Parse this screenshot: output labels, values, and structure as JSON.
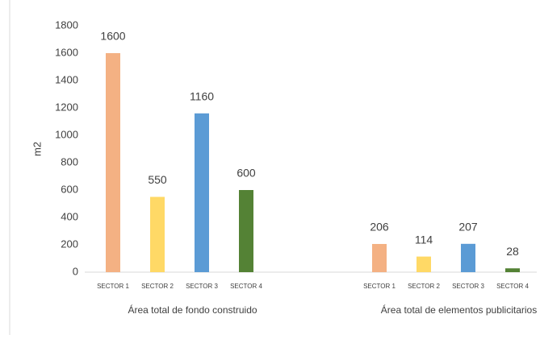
{
  "chart_data": {
    "type": "bar",
    "y_label": "m2",
    "categories": [
      "Área  total de fondo construido",
      "Área total de elementos publicitarios"
    ],
    "series": [
      {
        "name": "SECTOR 1",
        "color": "#f4b183",
        "values": [
          1600,
          206
        ]
      },
      {
        "name": "SECTOR 2",
        "color": "#ffd966",
        "values": [
          550,
          114
        ]
      },
      {
        "name": "SECTOR 3",
        "color": "#5b9bd5",
        "values": [
          1160,
          207
        ]
      },
      {
        "name": "SECTOR 4",
        "color": "#548235",
        "values": [
          600,
          28
        ]
      }
    ],
    "ylim": [
      0,
      1800
    ],
    "yticks": [
      0,
      200,
      400,
      600,
      800,
      1000,
      1200,
      1400,
      1600,
      1800
    ],
    "grid": false
  }
}
